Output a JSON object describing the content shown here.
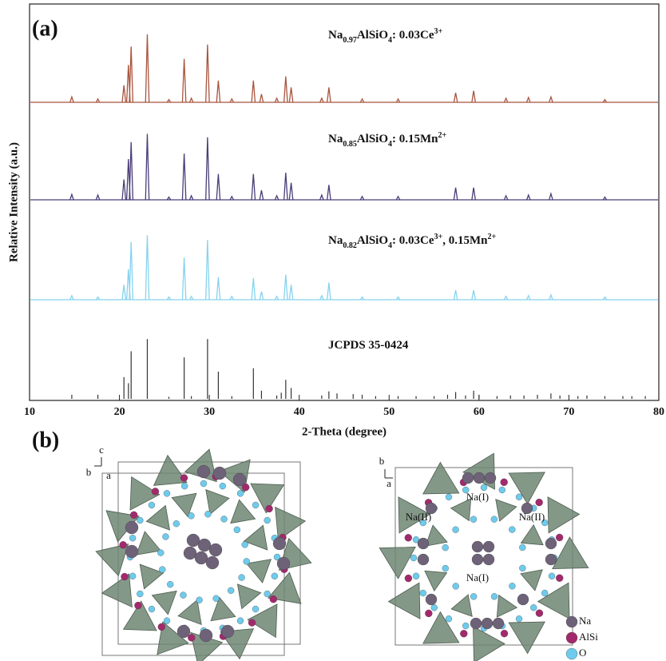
{
  "chart_data": {
    "type": "line",
    "xlabel": "2-Theta (degree)",
    "ylabel": "Relative Intensity (a.u.)",
    "panel_label": "(a)",
    "xlim": [
      10,
      80
    ],
    "xticks": [
      10,
      20,
      30,
      40,
      50,
      60,
      70,
      80
    ],
    "series": [
      {
        "label": [
          {
            "text": "Na"
          },
          {
            "sub": "0.97"
          },
          {
            "text": "AlSiO"
          },
          {
            "sub": "4"
          },
          {
            "text": ": 0.03Ce"
          },
          {
            "sup": "3+"
          }
        ],
        "color": "#a8553e",
        "style": "pattern",
        "x": [
          14.7,
          17.6,
          20.5,
          21.0,
          21.3,
          23.1,
          25.5,
          27.2,
          28.0,
          29.8,
          31.0,
          32.5,
          34.9,
          35.8,
          37.5,
          38.5,
          39.1,
          42.5,
          43.3,
          47.0,
          51.0,
          57.4,
          59.4,
          63.0,
          65.5,
          68.0,
          74.0
        ],
        "values": [
          8,
          5,
          25,
          55,
          82,
          100,
          4,
          64,
          6,
          85,
          32,
          5,
          32,
          12,
          6,
          38,
          22,
          6,
          22,
          5,
          5,
          14,
          17,
          6,
          7,
          8,
          4
        ]
      },
      {
        "label": [
          {
            "text": "Na"
          },
          {
            "sub": "0.85"
          },
          {
            "text": "AlSiO"
          },
          {
            "sub": "4"
          },
          {
            "text": ": 0.15Mn"
          },
          {
            "sup": "2+"
          }
        ],
        "color": "#4a3d78",
        "style": "pattern",
        "x": [
          14.7,
          17.6,
          20.5,
          21.0,
          21.3,
          23.1,
          25.5,
          27.2,
          28.0,
          29.8,
          31.0,
          32.5,
          34.9,
          35.8,
          37.5,
          38.5,
          39.1,
          42.5,
          43.3,
          47.0,
          51.0,
          57.4,
          59.4,
          63.0,
          65.5,
          68.0,
          74.0
        ],
        "values": [
          8,
          7,
          30,
          60,
          85,
          97,
          4,
          68,
          6,
          92,
          38,
          5,
          38,
          14,
          6,
          40,
          25,
          7,
          22,
          5,
          5,
          18,
          18,
          6,
          7,
          9,
          4
        ]
      },
      {
        "label": [
          {
            "text": "Na"
          },
          {
            "sub": "0.82"
          },
          {
            "text": "AlSiO"
          },
          {
            "sub": "4"
          },
          {
            "text": ": 0.03Ce"
          },
          {
            "sup": "3+"
          },
          {
            "text": ", 0.15Mn"
          },
          {
            "sup": "2+"
          }
        ],
        "color": "#86d3ef",
        "style": "pattern",
        "x": [
          14.7,
          17.6,
          20.5,
          21.0,
          21.3,
          23.1,
          25.5,
          27.2,
          28.0,
          29.8,
          31.0,
          32.5,
          34.9,
          35.8,
          37.5,
          38.5,
          39.1,
          42.5,
          43.3,
          47.0,
          51.0,
          57.4,
          59.4,
          63.0,
          65.5,
          68.0,
          74.0
        ],
        "values": [
          6,
          4,
          22,
          45,
          85,
          95,
          4,
          62,
          5,
          88,
          33,
          5,
          32,
          12,
          5,
          37,
          22,
          6,
          25,
          4,
          4,
          14,
          14,
          5,
          6,
          7,
          4
        ]
      },
      {
        "label": [
          {
            "text": "JCPDS 35-0424"
          }
        ],
        "color": "#333333",
        "style": "stick",
        "x": [
          14.7,
          17.6,
          20.5,
          21.0,
          21.3,
          23.1,
          25.5,
          27.2,
          28.0,
          29.8,
          31.0,
          32.5,
          34.9,
          35.8,
          37.5,
          38.0,
          38.5,
          39.1,
          42.5,
          43.3,
          44.2,
          46.0,
          47.0,
          48.5,
          51.0,
          53.0,
          55.0,
          56.5,
          57.4,
          58.5,
          59.4,
          60.0,
          62.0,
          63.5,
          65.0,
          66.5,
          68.0,
          69.0,
          71.0,
          72.0,
          74.0,
          76.0,
          77.0,
          78.5
        ],
        "values": [
          6,
          6,
          32,
          23,
          70,
          88,
          3,
          61,
          4,
          88,
          40,
          4,
          45,
          12,
          5,
          9,
          28,
          16,
          5,
          11,
          8,
          7,
          6,
          4,
          4,
          4,
          4,
          6,
          10,
          5,
          12,
          6,
          4,
          5,
          5,
          6,
          8,
          5,
          4,
          5,
          4,
          4,
          4,
          4
        ]
      }
    ]
  },
  "panel_b": {
    "label": "(b)",
    "left_axes": [
      "c",
      "b",
      "a"
    ],
    "right_axes": [
      "b",
      "a"
    ],
    "sites": [
      "Na(I)",
      "Na(II)",
      "Na(II)",
      "Na(I)"
    ],
    "legend": [
      "Na",
      "AlSi",
      "O"
    ]
  }
}
